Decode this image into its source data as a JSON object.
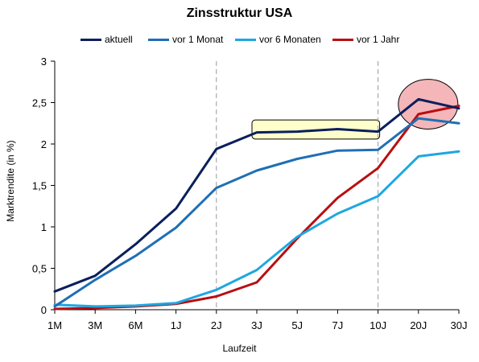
{
  "chart_data": {
    "type": "line",
    "title": "Zinsstruktur USA",
    "xlabel": "Laufzeit",
    "ylabel": "Marktrendite  (in %)",
    "categories": [
      "1M",
      "3M",
      "6M",
      "1J",
      "2J",
      "3J",
      "5J",
      "7J",
      "10J",
      "20J",
      "30J"
    ],
    "ylim": [
      0,
      3
    ],
    "yticks": [
      "0",
      "0,5",
      "1",
      "1,5",
      "2",
      "2,5",
      "3"
    ],
    "ytick_values": [
      0,
      0.5,
      1,
      1.5,
      2,
      2.5,
      3
    ],
    "grid": "vertical dashed at 2J and 10J",
    "legend_position": "top",
    "series": [
      {
        "name": "aktuell",
        "color": "#0a1f5c",
        "values": [
          0.22,
          0.41,
          0.79,
          1.22,
          1.94,
          2.14,
          2.15,
          2.18,
          2.15,
          2.54,
          2.43
        ]
      },
      {
        "name": "vor 1 Monat",
        "color": "#1f6fb5",
        "values": [
          0.04,
          0.36,
          0.65,
          0.99,
          1.47,
          1.68,
          1.82,
          1.92,
          1.93,
          2.31,
          2.25
        ]
      },
      {
        "name": "vor 6 Monaten",
        "color": "#1ea7e1",
        "values": [
          0.06,
          0.04,
          0.05,
          0.08,
          0.24,
          0.48,
          0.88,
          1.16,
          1.37,
          1.85,
          1.91
        ]
      },
      {
        "name": "vor 1 Jahr",
        "color": "#b80f12",
        "values": [
          0.01,
          0.02,
          0.04,
          0.07,
          0.16,
          0.33,
          0.86,
          1.35,
          1.71,
          2.36,
          2.46
        ]
      }
    ],
    "highlights": [
      {
        "shape": "rectangle",
        "fill": "#ffffcc",
        "stroke": "#000000",
        "from": "3J",
        "to": "10J",
        "y_range": [
          2.06,
          2.29
        ]
      },
      {
        "shape": "ellipse",
        "fill": "#f4b6b8",
        "stroke": "#000000",
        "center_x": "20J",
        "y_range": [
          2.18,
          2.78
        ]
      }
    ]
  }
}
